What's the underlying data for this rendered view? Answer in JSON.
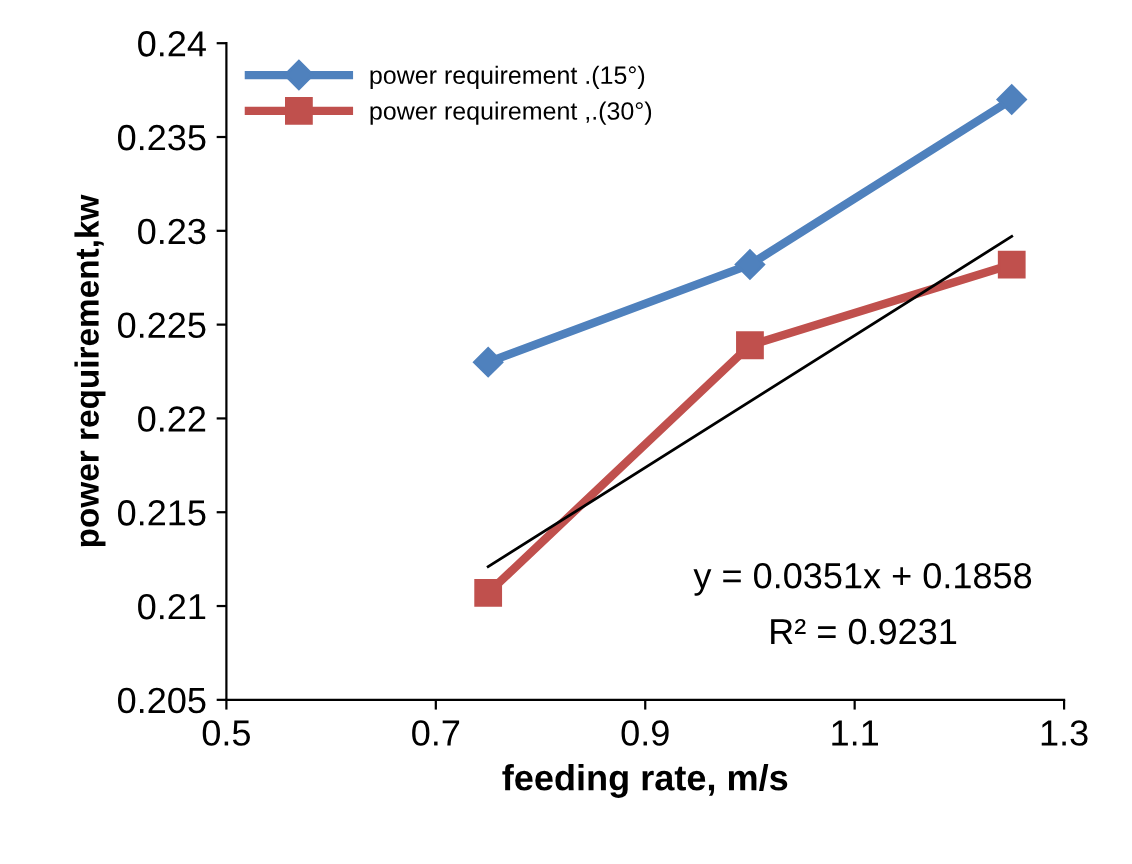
{
  "chart_data": {
    "type": "line",
    "xlabel": "feeding rate, m/s",
    "ylabel": "power requirement,kw",
    "x": [
      0.75,
      1.0,
      1.25
    ],
    "series": [
      {
        "name": "power requirement .(15°)",
        "color": "#4f81bd",
        "marker": "diamond",
        "values": [
          0.223,
          0.2282,
          0.237
        ]
      },
      {
        "name": "power requirement ,.(30°)",
        "color": "#c0504d",
        "marker": "square",
        "values": [
          0.2107,
          0.2239,
          0.2282
        ]
      },
      {
        "type": "line",
        "color": "#000000",
        "marker": "none",
        "x": [
          0.75,
          1.25
        ],
        "values": [
          0.2121,
          0.2297
        ]
      }
    ],
    "annotations": [
      "y = 0.0351x + 0.1858",
      "R² = 0.9231"
    ],
    "xlim": [
      0.5,
      1.3
    ],
    "xticks": [
      0.5,
      0.7,
      0.9,
      1.1,
      1.3
    ],
    "ylim": [
      0.205,
      0.24
    ],
    "yticks": [
      0.205,
      0.21,
      0.215,
      0.22,
      0.225,
      0.23,
      0.235,
      0.24
    ],
    "grid": false,
    "legend": "top left"
  }
}
